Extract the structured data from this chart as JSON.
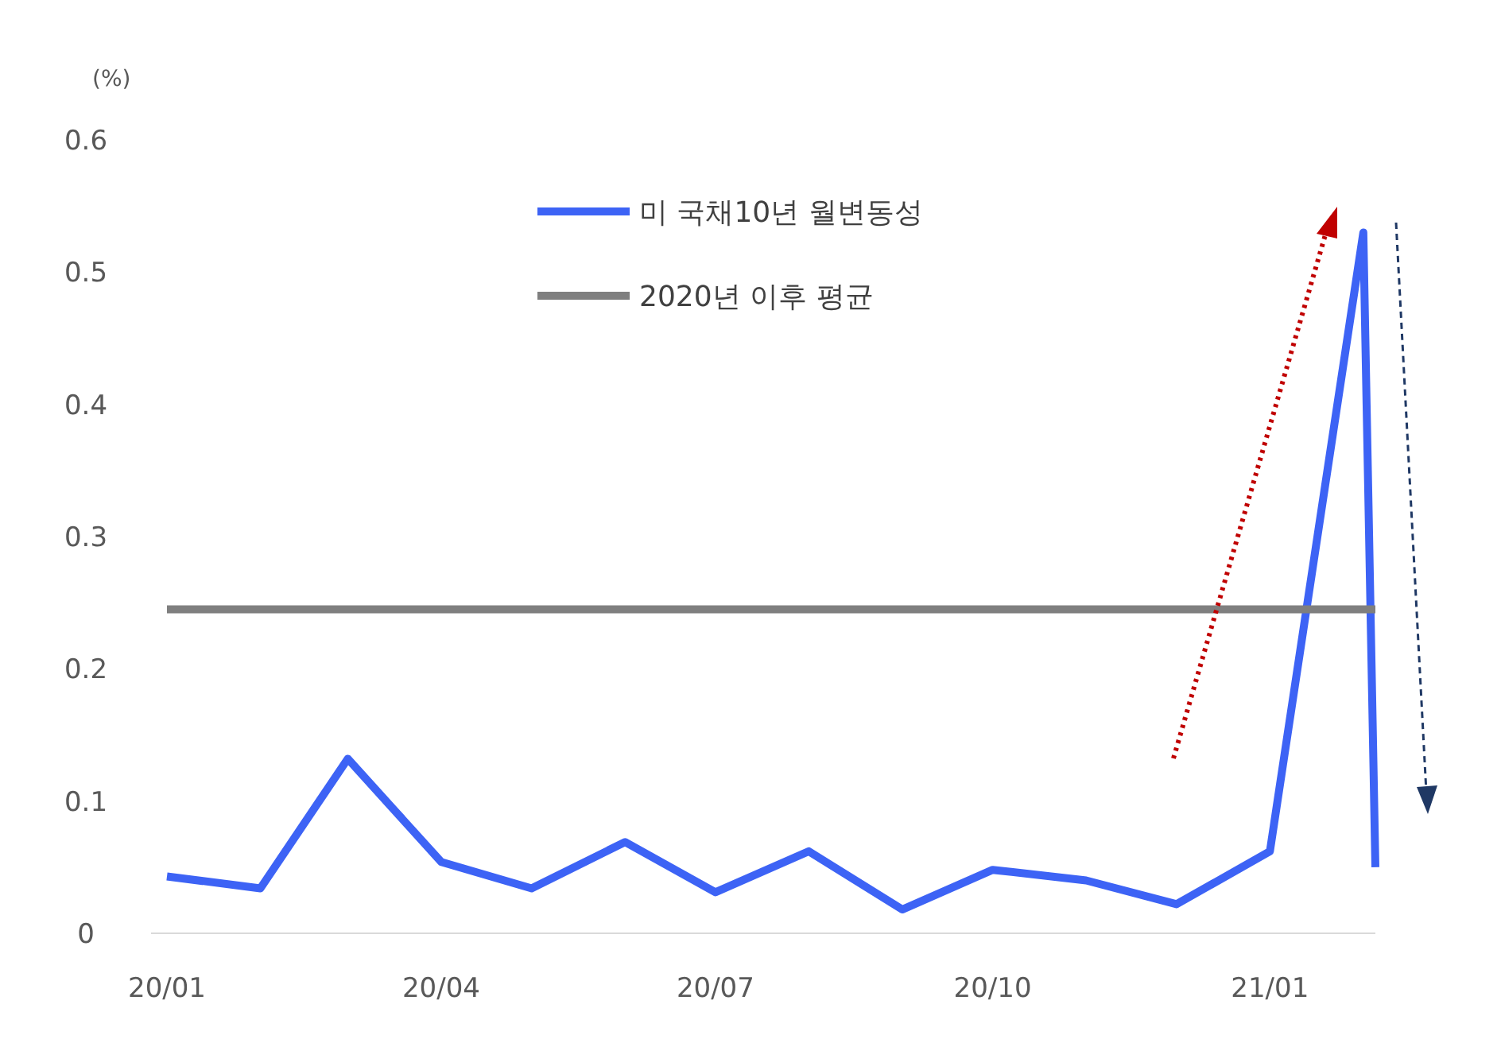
{
  "chart_data": {
    "type": "line",
    "ylabel": "(%)",
    "xlim": [
      "2020-01",
      "2021-02-05"
    ],
    "ylim": [
      0,
      0.6
    ],
    "yticks": [
      0,
      0.1,
      0.2,
      0.3,
      0.4,
      0.5,
      0.6
    ],
    "xticks": [
      {
        "value": "2020-01",
        "label": "20/01"
      },
      {
        "value": "2020-04",
        "label": "20/04"
      },
      {
        "value": "2020-07",
        "label": "20/07"
      },
      {
        "value": "2020-10",
        "label": "20/10"
      },
      {
        "value": "2021-01",
        "label": "21/01"
      }
    ],
    "series": [
      {
        "name": "미 국채10년 월변동성",
        "color": "#3d63f5",
        "x": [
          "2020-01",
          "2020-02",
          "2020-03",
          "2020-04",
          "2020-05",
          "2020-06",
          "2020-07",
          "2020-08",
          "2020-09",
          "2020-10",
          "2020-11",
          "2020-12",
          "2021-01",
          "2021-02",
          "2021-02-05"
        ],
        "values": [
          0.043,
          0.034,
          0.132,
          0.054,
          0.034,
          0.069,
          0.031,
          0.062,
          0.018,
          0.048,
          0.04,
          0.022,
          0.062,
          0.53,
          0.05
        ]
      },
      {
        "name": "2020년 이후 평균",
        "color": "#7f7f7f",
        "x": [
          "2020-01",
          "2021-02-05"
        ],
        "values": [
          0.245,
          0.245
        ]
      }
    ],
    "grid": false,
    "legend": "top right",
    "marker": "none",
    "line_style": "solid"
  }
}
